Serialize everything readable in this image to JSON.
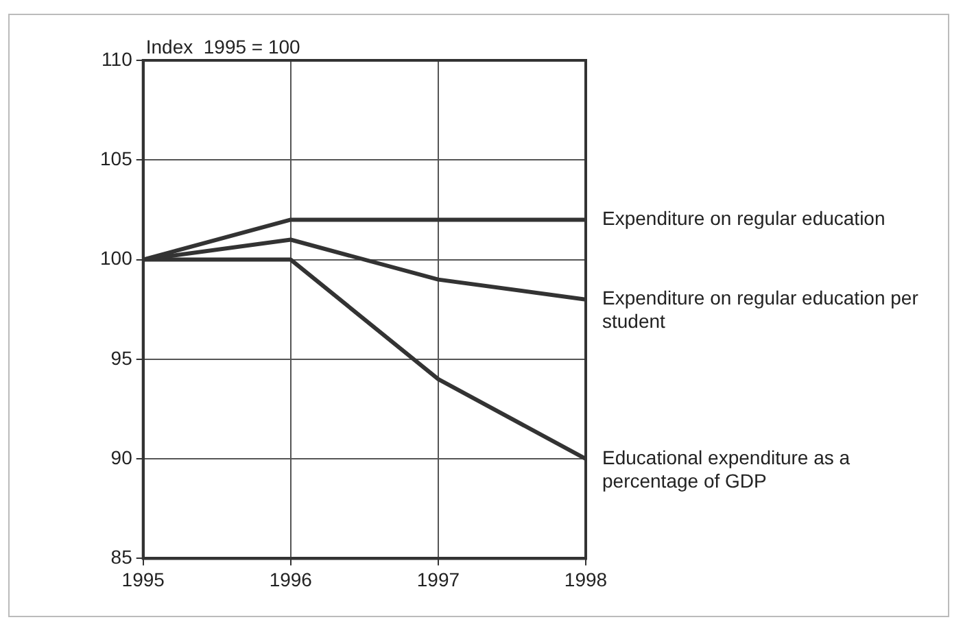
{
  "chart_data": {
    "type": "line",
    "ylabel": "Index  1995 = 100",
    "x": [
      1995,
      1996,
      1997,
      1998
    ],
    "xlim": [
      1995,
      1998
    ],
    "xticks": [
      1995,
      1996,
      1997,
      1998
    ],
    "ylim": [
      85,
      110
    ],
    "yticks": [
      85,
      90,
      95,
      100,
      105,
      110
    ],
    "grid": true,
    "legend": false,
    "marker": "none",
    "line_style": "solid",
    "series": [
      {
        "name": "Expenditure on regular education",
        "color": "#333333",
        "values": [
          100,
          102,
          102,
          102
        ]
      },
      {
        "name": "Expenditure on regular education per student",
        "color": "#333333",
        "values": [
          100,
          101,
          99,
          98
        ]
      },
      {
        "name": "Educational expenditure as a percentage of GDP",
        "color": "#333333",
        "values": [
          100,
          100,
          94,
          90
        ]
      }
    ]
  }
}
